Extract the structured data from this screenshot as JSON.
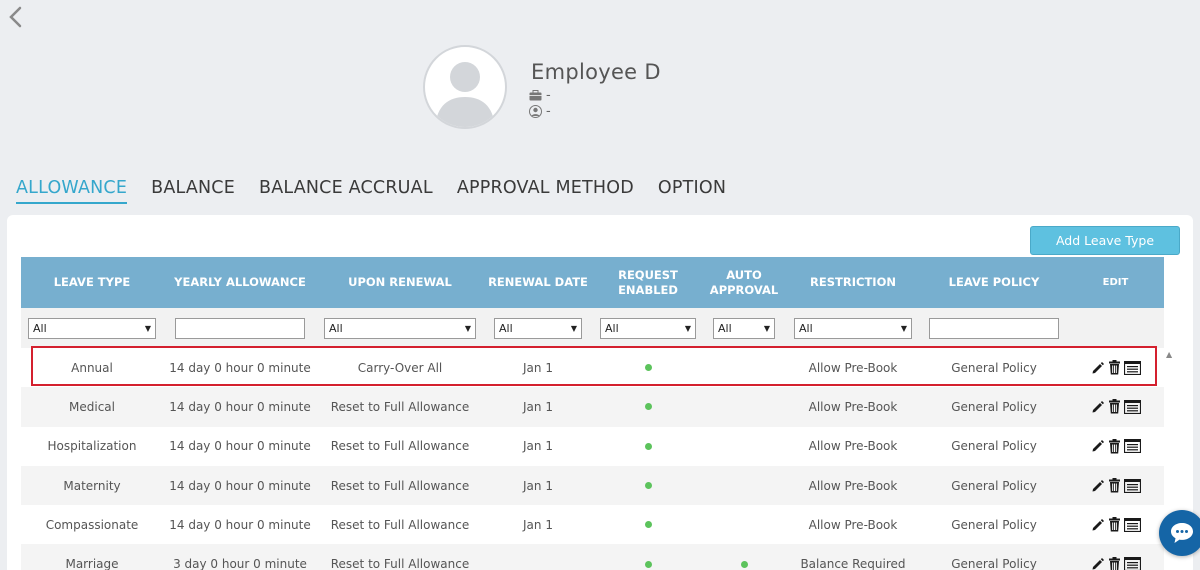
{
  "employee": {
    "name": "Employee D",
    "position": "-",
    "department": "-"
  },
  "tabs": [
    {
      "label": "ALLOWANCE",
      "active": true
    },
    {
      "label": "BALANCE",
      "active": false
    },
    {
      "label": "BALANCE ACCRUAL",
      "active": false
    },
    {
      "label": "APPROVAL METHOD",
      "active": false
    },
    {
      "label": "OPTION",
      "active": false
    }
  ],
  "add_button": "Add Leave Type",
  "columns": [
    {
      "label": "LEAVE TYPE"
    },
    {
      "label": "YEARLY ALLOWANCE"
    },
    {
      "label": "UPON RENEWAL"
    },
    {
      "label": "RENEWAL DATE"
    },
    {
      "label": "REQUEST ENABLED"
    },
    {
      "label": "AUTO APPROVAL"
    },
    {
      "label": "RESTRICTION"
    },
    {
      "label": "LEAVE POLICY"
    },
    {
      "label": "EDIT"
    }
  ],
  "filters": {
    "leave_type": "All",
    "upon_renewal": "All",
    "renewal_date": "All",
    "request_enabled": "All",
    "auto_approval": "All",
    "restriction": "All"
  },
  "rows": [
    {
      "leave_type": "Annual",
      "allowance": "14 day 0 hour 0 minute",
      "renewal": "Carry-Over All",
      "date": "Jan 1",
      "request_enabled": true,
      "auto_approval": false,
      "restriction": "Allow Pre-Book",
      "policy": "General Policy"
    },
    {
      "leave_type": "Medical",
      "allowance": "14 day 0 hour 0 minute",
      "renewal": "Reset to Full Allowance",
      "date": "Jan 1",
      "request_enabled": true,
      "auto_approval": false,
      "restriction": "Allow Pre-Book",
      "policy": "General Policy"
    },
    {
      "leave_type": "Hospitalization",
      "allowance": "14 day 0 hour 0 minute",
      "renewal": "Reset to Full Allowance",
      "date": "Jan 1",
      "request_enabled": true,
      "auto_approval": false,
      "restriction": "Allow Pre-Book",
      "policy": "General Policy"
    },
    {
      "leave_type": "Maternity",
      "allowance": "14 day 0 hour 0 minute",
      "renewal": "Reset to Full Allowance",
      "date": "Jan 1",
      "request_enabled": true,
      "auto_approval": false,
      "restriction": "Allow Pre-Book",
      "policy": "General Policy"
    },
    {
      "leave_type": "Compassionate",
      "allowance": "14 day 0 hour 0 minute",
      "renewal": "Reset to Full Allowance",
      "date": "Jan 1",
      "request_enabled": true,
      "auto_approval": false,
      "restriction": "Allow Pre-Book",
      "policy": "General Policy"
    },
    {
      "leave_type": "Marriage",
      "allowance": "3 day 0 hour 0 minute",
      "renewal": "Reset to Full Allowance",
      "date": "",
      "request_enabled": true,
      "auto_approval": true,
      "restriction": "Balance Required",
      "policy": "General Policy"
    }
  ],
  "colors": {
    "accent": "#35a7cc",
    "header_bg": "#77afcf",
    "button_bg": "#5ec1e0",
    "status_dot": "#5cc35c",
    "highlight": "#d4202e",
    "chat_button": "#1565a6"
  },
  "icons": [
    "back-chevron-icon",
    "briefcase-icon",
    "user-circle-icon",
    "pencil-icon",
    "trash-icon",
    "list-icon",
    "chat-icon"
  ]
}
